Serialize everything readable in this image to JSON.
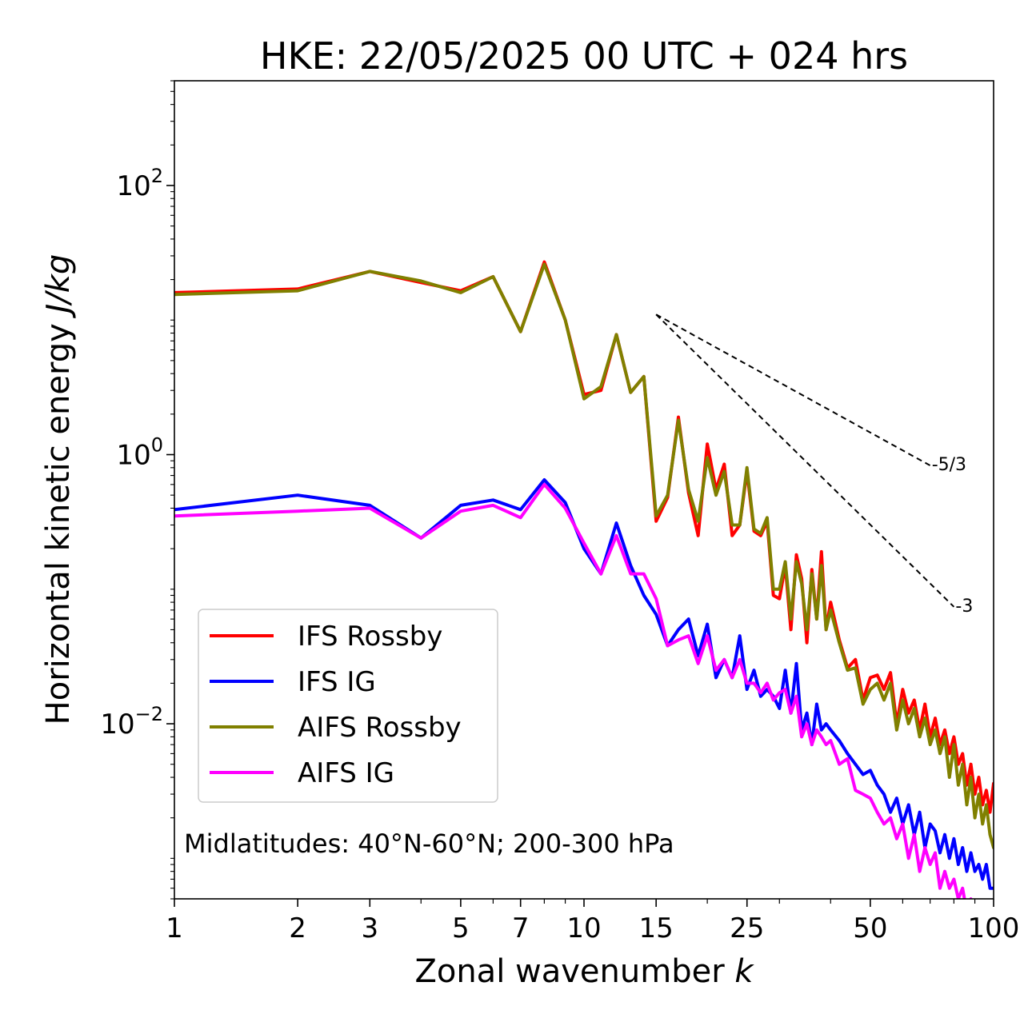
{
  "chart_data": {
    "type": "line",
    "title": "HKE: 22/05/2025 00 UTC + 024 hrs",
    "xlabel": "Zonal wavenumber ",
    "xlabel_italic": "k",
    "ylabel": "Horizontal kinetic energy ",
    "ylabel_italic": "J/kg",
    "xscale": "log",
    "yscale": "log",
    "xlim": [
      1,
      100
    ],
    "ylim": [
      0.0005,
      600
    ],
    "x_ticks": [
      1,
      2,
      3,
      5,
      7,
      10,
      15,
      25,
      50,
      100
    ],
    "x_tick_labels": [
      "1",
      "2",
      "3",
      "5",
      "7",
      "10",
      "15",
      "25",
      "50",
      "100"
    ],
    "y_ticks": [
      {
        "value": 100,
        "base": "10",
        "exp": "2"
      },
      {
        "value": 1,
        "base": "10",
        "exp": "0"
      },
      {
        "value": 0.01,
        "base": "10",
        "exp": "−2"
      }
    ],
    "annotation": "Midlatitudes: 40°N-60°N; 200-300 hPa",
    "legend_position": "lower-left",
    "reference_lines": [
      {
        "label": "-5/3",
        "x": [
          15,
          70
        ],
        "y": [
          11.0,
          0.83
        ],
        "color": "#000000",
        "style": "dashed"
      },
      {
        "label": "-3",
        "x": [
          15,
          80
        ],
        "y": [
          11.0,
          0.074
        ],
        "color": "#000000",
        "style": "dashed"
      }
    ],
    "series": [
      {
        "name": "IFS Rossby",
        "color": "#ff0000",
        "x": [
          1,
          2,
          3,
          4,
          5,
          6,
          7,
          8,
          9,
          10,
          11,
          12,
          13,
          14,
          15,
          16,
          17,
          18,
          19,
          20,
          21,
          22,
          23,
          24,
          25,
          26,
          27,
          28,
          29,
          30,
          31,
          32,
          33,
          34,
          35,
          36,
          37,
          38,
          39,
          40,
          42,
          44,
          46,
          48,
          50,
          52,
          54,
          56,
          58,
          60,
          62,
          64,
          66,
          68,
          70,
          72,
          74,
          76,
          78,
          80,
          82,
          84,
          86,
          88,
          90,
          92,
          94,
          96,
          98,
          100
        ],
        "y": [
          16.0,
          17.0,
          23.0,
          19.0,
          16.5,
          21.0,
          8.2,
          27.0,
          10.0,
          2.8,
          3.0,
          7.8,
          2.9,
          3.8,
          0.32,
          0.48,
          1.9,
          0.52,
          0.25,
          1.2,
          0.55,
          0.85,
          0.25,
          0.3,
          0.75,
          0.27,
          0.25,
          0.32,
          0.09,
          0.085,
          0.15,
          0.05,
          0.18,
          0.12,
          0.04,
          0.14,
          0.06,
          0.19,
          0.05,
          0.08,
          0.042,
          0.026,
          0.03,
          0.015,
          0.022,
          0.023,
          0.018,
          0.024,
          0.01,
          0.018,
          0.012,
          0.015,
          0.009,
          0.014,
          0.008,
          0.011,
          0.007,
          0.009,
          0.006,
          0.008,
          0.005,
          0.006,
          0.0035,
          0.005,
          0.003,
          0.004,
          0.0025,
          0.0032,
          0.0022,
          0.0036
        ]
      },
      {
        "name": "IFS IG",
        "color": "#0000ff",
        "x": [
          1,
          2,
          3,
          4,
          5,
          6,
          7,
          8,
          9,
          10,
          11,
          12,
          13,
          14,
          15,
          16,
          17,
          18,
          19,
          20,
          21,
          22,
          23,
          24,
          25,
          26,
          27,
          28,
          29,
          30,
          31,
          32,
          33,
          34,
          35,
          36,
          37,
          38,
          39,
          40,
          42,
          44,
          46,
          48,
          50,
          52,
          54,
          56,
          58,
          60,
          62,
          64,
          66,
          68,
          70,
          72,
          74,
          76,
          78,
          80,
          82,
          84,
          86,
          88,
          90,
          92,
          94,
          96,
          98,
          100
        ],
        "y": [
          0.39,
          0.5,
          0.42,
          0.24,
          0.42,
          0.46,
          0.39,
          0.65,
          0.44,
          0.2,
          0.13,
          0.31,
          0.15,
          0.09,
          0.065,
          0.038,
          0.05,
          0.06,
          0.032,
          0.055,
          0.022,
          0.03,
          0.022,
          0.045,
          0.018,
          0.025,
          0.016,
          0.018,
          0.016,
          0.013,
          0.025,
          0.012,
          0.028,
          0.009,
          0.012,
          0.007,
          0.014,
          0.009,
          0.01,
          0.009,
          0.0075,
          0.006,
          0.005,
          0.0042,
          0.0045,
          0.0035,
          0.003,
          0.0022,
          0.0028,
          0.0018,
          0.0025,
          0.0015,
          0.0022,
          0.0012,
          0.0018,
          0.0016,
          0.0011,
          0.0015,
          0.001,
          0.0014,
          0.0009,
          0.0012,
          0.0008,
          0.0011,
          0.0008,
          0.0009,
          0.0007,
          0.0009,
          0.0006,
          0.0006
        ]
      },
      {
        "name": "AIFS Rossby",
        "color": "#808000",
        "x": [
          1,
          2,
          3,
          4,
          5,
          6,
          7,
          8,
          9,
          10,
          11,
          12,
          13,
          14,
          15,
          16,
          17,
          18,
          19,
          20,
          21,
          22,
          23,
          24,
          25,
          26,
          27,
          28,
          29,
          30,
          31,
          32,
          33,
          34,
          35,
          36,
          37,
          38,
          39,
          40,
          42,
          44,
          46,
          48,
          50,
          52,
          54,
          56,
          58,
          60,
          62,
          64,
          66,
          68,
          70,
          72,
          74,
          76,
          78,
          80,
          82,
          84,
          86,
          88,
          90,
          92,
          94,
          96,
          98,
          100
        ],
        "y": [
          15.5,
          16.5,
          23.0,
          19.5,
          16.0,
          21.0,
          8.2,
          26.0,
          10.0,
          2.6,
          3.2,
          7.8,
          2.9,
          3.8,
          0.35,
          0.5,
          1.8,
          0.55,
          0.32,
          0.95,
          0.5,
          0.75,
          0.3,
          0.3,
          0.8,
          0.28,
          0.26,
          0.34,
          0.1,
          0.1,
          0.16,
          0.06,
          0.16,
          0.11,
          0.05,
          0.13,
          0.06,
          0.15,
          0.05,
          0.07,
          0.04,
          0.025,
          0.026,
          0.014,
          0.018,
          0.02,
          0.015,
          0.02,
          0.009,
          0.015,
          0.01,
          0.013,
          0.008,
          0.011,
          0.007,
          0.009,
          0.006,
          0.008,
          0.004,
          0.007,
          0.0035,
          0.005,
          0.0025,
          0.004,
          0.002,
          0.003,
          0.0018,
          0.0025,
          0.0015,
          0.0012
        ]
      },
      {
        "name": "AIFS IG",
        "color": "#ff00ff",
        "x": [
          1,
          2,
          3,
          4,
          5,
          6,
          7,
          8,
          9,
          10,
          11,
          12,
          13,
          14,
          15,
          16,
          17,
          18,
          19,
          20,
          21,
          22,
          23,
          24,
          25,
          26,
          27,
          28,
          29,
          30,
          31,
          32,
          33,
          34,
          35,
          36,
          37,
          38,
          39,
          40,
          42,
          44,
          46,
          48,
          50,
          52,
          54,
          56,
          58,
          60,
          62,
          64,
          66,
          68,
          70,
          72,
          74,
          76,
          78,
          80,
          82,
          84,
          86,
          88,
          90
        ],
        "y": [
          0.35,
          0.38,
          0.4,
          0.24,
          0.38,
          0.42,
          0.34,
          0.6,
          0.4,
          0.22,
          0.13,
          0.25,
          0.13,
          0.13,
          0.085,
          0.038,
          0.042,
          0.045,
          0.028,
          0.045,
          0.025,
          0.03,
          0.022,
          0.03,
          0.02,
          0.02,
          0.017,
          0.02,
          0.015,
          0.017,
          0.018,
          0.012,
          0.016,
          0.008,
          0.01,
          0.007,
          0.009,
          0.008,
          0.007,
          0.0075,
          0.005,
          0.0055,
          0.0032,
          0.003,
          0.0028,
          0.0022,
          0.0018,
          0.002,
          0.0014,
          0.0018,
          0.001,
          0.0015,
          0.0008,
          0.0012,
          0.0009,
          0.0011,
          0.0006,
          0.0008,
          0.0006,
          0.0007,
          0.0005,
          0.0006,
          0.0004,
          0.0005,
          0.0004
        ]
      }
    ]
  }
}
